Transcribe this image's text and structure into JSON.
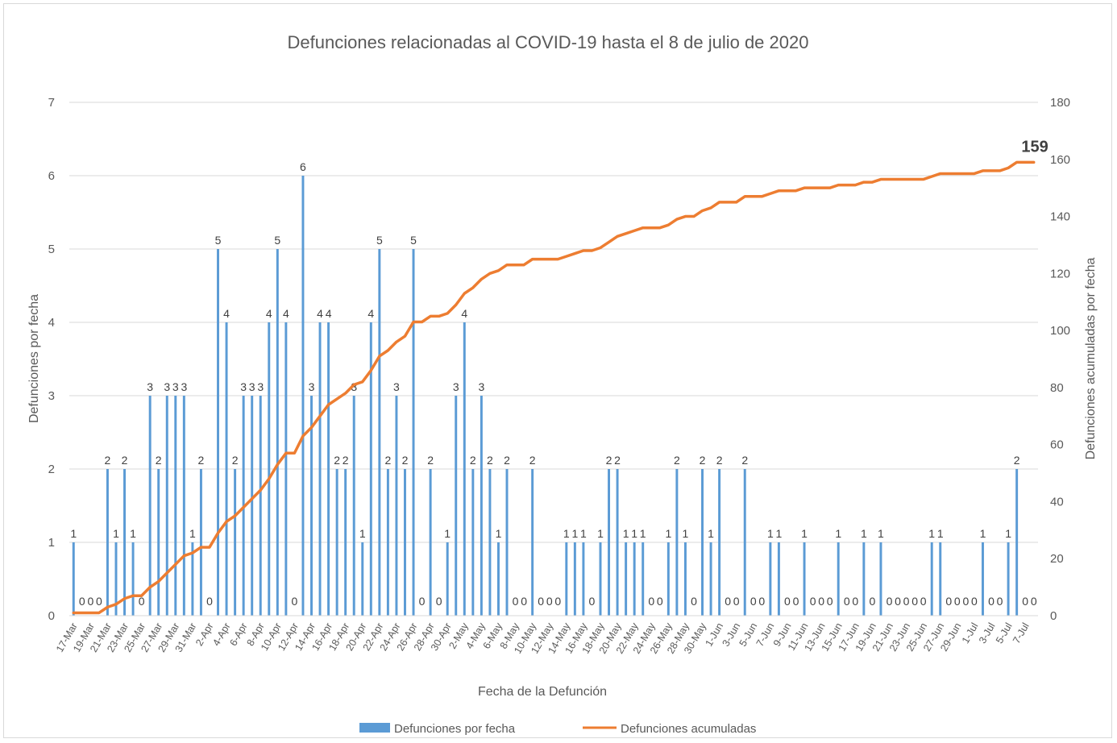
{
  "chart_data": {
    "type": "bar",
    "title": "Defunciones relacionadas al COVID-19 hasta el 8 de julio de 2020",
    "xlabel": "Fecha de la Defunción",
    "ylabel": "Defunciones por fecha",
    "y2label": "Defunciones acumuladas por fecha",
    "ylim": [
      0,
      7
    ],
    "y2lim": [
      0,
      180
    ],
    "yticks": [
      "0",
      "1",
      "2",
      "3",
      "4",
      "5",
      "6",
      "7"
    ],
    "y2ticks": [
      "0",
      "20",
      "40",
      "60",
      "80",
      "100",
      "120",
      "140",
      "160",
      "180"
    ],
    "grid": true,
    "legend_position": "bottom",
    "categories": [
      "17-Mar",
      "18-Mar",
      "19-Mar",
      "20-Mar",
      "21-Mar",
      "22-Mar",
      "23-Mar",
      "24-Mar",
      "25-Mar",
      "26-Mar",
      "27-Mar",
      "28-Mar",
      "29-Mar",
      "30-Mar",
      "31-Mar",
      "1-Apr",
      "2-Apr",
      "3-Apr",
      "4-Apr",
      "5-Apr",
      "6-Apr",
      "7-Apr",
      "8-Apr",
      "9-Apr",
      "10-Apr",
      "11-Apr",
      "12-Apr",
      "13-Apr",
      "14-Apr",
      "15-Apr",
      "16-Apr",
      "17-Apr",
      "18-Apr",
      "19-Apr",
      "20-Apr",
      "21-Apr",
      "22-Apr",
      "23-Apr",
      "24-Apr",
      "25-Apr",
      "26-Apr",
      "27-Apr",
      "28-Apr",
      "29-Apr",
      "30-Apr",
      "1-May",
      "2-May",
      "3-May",
      "4-May",
      "5-May",
      "6-May",
      "7-May",
      "8-May",
      "9-May",
      "10-May",
      "11-May",
      "12-May",
      "13-May",
      "14-May",
      "15-May",
      "16-May",
      "17-May",
      "18-May",
      "19-May",
      "20-May",
      "21-May",
      "22-May",
      "23-May",
      "24-May",
      "25-May",
      "26-May",
      "27-May",
      "28-May",
      "29-May",
      "30-May",
      "31-May",
      "1-Jun",
      "2-Jun",
      "3-Jun",
      "4-Jun",
      "5-Jun",
      "6-Jun",
      "7-Jun",
      "8-Jun",
      "9-Jun",
      "10-Jun",
      "11-Jun",
      "12-Jun",
      "13-Jun",
      "14-Jun",
      "15-Jun",
      "16-Jun",
      "17-Jun",
      "18-Jun",
      "19-Jun",
      "20-Jun",
      "21-Jun",
      "22-Jun",
      "23-Jun",
      "24-Jun",
      "25-Jun",
      "26-Jun",
      "27-Jun",
      "28-Jun",
      "29-Jun",
      "30-Jun",
      "1-Jul",
      "2-Jul",
      "3-Jul",
      "4-Jul",
      "5-Jul",
      "6-Jul",
      "7-Jul",
      "8-Jul"
    ],
    "tick_labels": [
      "17-Mar",
      "19-Mar",
      "21-Mar",
      "23-Mar",
      "25-Mar",
      "27-Mar",
      "29-Mar",
      "31-Mar",
      "2-Apr",
      "4-Apr",
      "6-Apr",
      "8-Apr",
      "10-Apr",
      "12-Apr",
      "14-Apr",
      "16-Apr",
      "18-Apr",
      "20-Apr",
      "22-Apr",
      "24-Apr",
      "26-Apr",
      "28-Apr",
      "30-Apr",
      "2-May",
      "4-May",
      "6-May",
      "8-May",
      "10-May",
      "12-May",
      "14-May",
      "16-May",
      "18-May",
      "20-May",
      "22-May",
      "24-May",
      "26-May",
      "28-May",
      "30-May",
      "1-Jun",
      "3-Jun",
      "5-Jun",
      "7-Jun",
      "9-Jun",
      "11-Jun",
      "13-Jun",
      "15-Jun",
      "17-Jun",
      "19-Jun",
      "21-Jun",
      "23-Jun",
      "25-Jun",
      "27-Jun",
      "29-Jun",
      "1-Jul",
      "3-Jul",
      "5-Jul",
      "7-Jul"
    ],
    "series": [
      {
        "name": "Defunciones por fecha",
        "type": "bar",
        "color": "#5b9bd5",
        "values": [
          1,
          0,
          0,
          0,
          2,
          1,
          2,
          1,
          0,
          3,
          2,
          3,
          3,
          3,
          1,
          2,
          0,
          5,
          4,
          2,
          3,
          3,
          3,
          4,
          5,
          4,
          0,
          6,
          3,
          4,
          4,
          2,
          2,
          3,
          1,
          4,
          5,
          2,
          3,
          2,
          5,
          0,
          2,
          0,
          1,
          3,
          4,
          2,
          3,
          2,
          1,
          2,
          0,
          0,
          2,
          0,
          0,
          0,
          1,
          1,
          1,
          0,
          1,
          2,
          2,
          1,
          1,
          1,
          0,
          0,
          1,
          2,
          1,
          0,
          2,
          1,
          2,
          0,
          0,
          2,
          0,
          0,
          1,
          1,
          0,
          0,
          1,
          0,
          0,
          0,
          1,
          0,
          0,
          1,
          0,
          1,
          0,
          0,
          0,
          0,
          0,
          1,
          1,
          0,
          0,
          0,
          0,
          1,
          0,
          0,
          1,
          2,
          0,
          0
        ]
      },
      {
        "name": "Defunciones acumuladas",
        "type": "line",
        "color": "#ed7d31",
        "values": [
          1,
          1,
          1,
          1,
          3,
          4,
          6,
          7,
          7,
          10,
          12,
          15,
          18,
          21,
          22,
          24,
          24,
          29,
          33,
          35,
          38,
          41,
          44,
          48,
          53,
          57,
          57,
          63,
          66,
          70,
          74,
          76,
          78,
          81,
          82,
          86,
          91,
          93,
          96,
          98,
          103,
          103,
          105,
          105,
          106,
          109,
          113,
          115,
          118,
          120,
          121,
          123,
          123,
          123,
          125,
          125,
          125,
          125,
          126,
          127,
          128,
          128,
          129,
          131,
          133,
          134,
          135,
          136,
          136,
          136,
          137,
          139,
          140,
          140,
          142,
          143,
          145,
          145,
          145,
          147,
          147,
          147,
          148,
          149,
          149,
          149,
          150,
          150,
          150,
          150,
          151,
          151,
          151,
          152,
          152,
          153,
          153,
          153,
          153,
          153,
          153,
          154,
          155,
          155,
          155,
          155,
          155,
          156,
          156,
          156,
          157,
          159,
          159,
          159
        ]
      }
    ],
    "annotations": [
      {
        "text": "159",
        "at": "8-Jul",
        "series": "Defunciones acumuladas"
      }
    ]
  }
}
